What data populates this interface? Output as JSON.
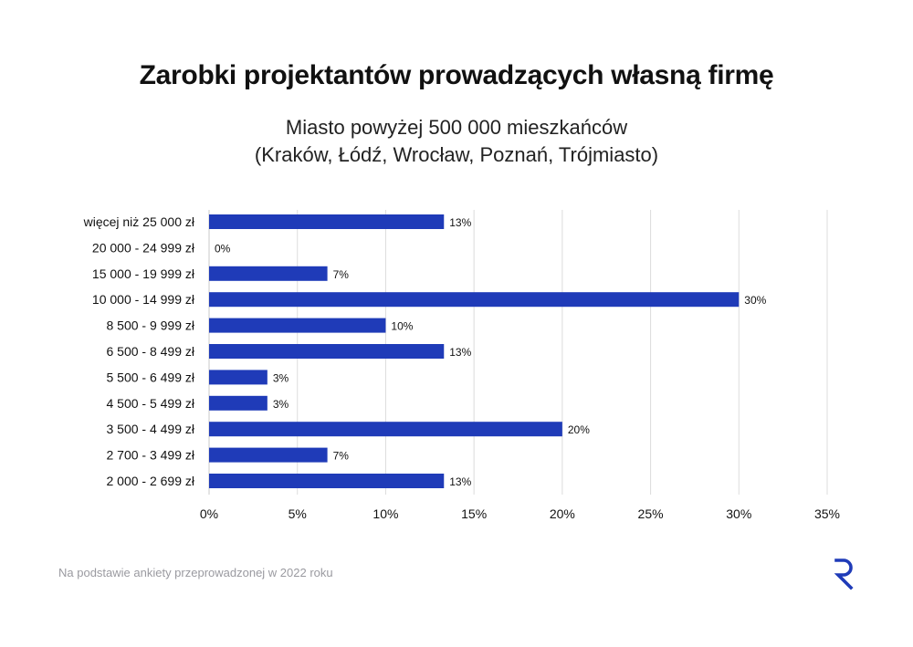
{
  "title": "Zarobki projektantów prowadzących własną firmę",
  "subtitle_line1": "Miasto powyżej 500 000 mieszkańców",
  "subtitle_line2": "(Kraków, Łódź, Wrocław, Poznań, Trójmiasto)",
  "footnote": "Na podstawie ankiety przeprowadzonej w 2022 roku",
  "logo_icon": "r-logo-icon",
  "colors": {
    "bar": "#1f3bb8",
    "grid": "#dcdcdc",
    "logo": "#1f3bb8",
    "text": "#111111"
  },
  "chart_data": {
    "type": "bar",
    "orientation": "horizontal",
    "categories": [
      "więcej niż 25 000 zł",
      "20 000 - 24 999 zł",
      "15 000 - 19 999 zł",
      "10 000 - 14 999 zł",
      "8 500 - 9 999 zł",
      "6 500 - 8 499 zł",
      "5 500 - 6 499 zł",
      "4 500 - 5 499 zł",
      "3 500 - 4 499 zł",
      "2 700 - 3 499 zł",
      "2 000 - 2 699 zł"
    ],
    "values": [
      13.3,
      0,
      6.7,
      30,
      10,
      13.3,
      3.3,
      3.3,
      20,
      6.7,
      13.3
    ],
    "data_labels": [
      "13%",
      "0%",
      "7%",
      "30%",
      "10%",
      "13%",
      "3%",
      "3%",
      "20%",
      "7%",
      "13%"
    ],
    "xlim": [
      0,
      35
    ],
    "xticks": [
      0,
      5,
      10,
      15,
      20,
      25,
      30,
      35
    ],
    "xtick_labels": [
      "0%",
      "5%",
      "10%",
      "15%",
      "20%",
      "25%",
      "30%",
      "35%"
    ],
    "grid": true,
    "legend": false
  }
}
